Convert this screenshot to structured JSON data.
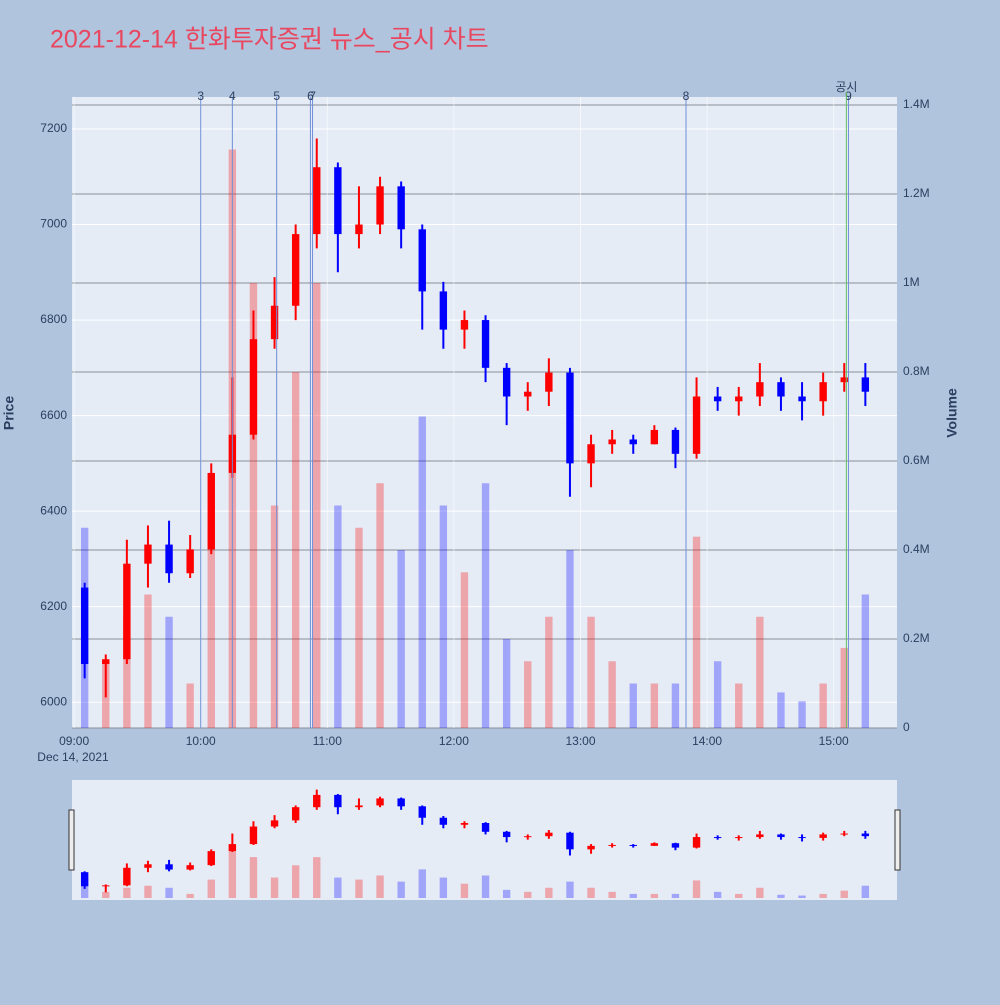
{
  "chart_data": {
    "type": "candlestick",
    "title": "2021-12-14 한화투자증권 뉴스_공시 차트",
    "y_label": "Price",
    "y2_label": "Volume",
    "x_sublabel": "Dec 14, 2021",
    "increasing_color": "#ff0000",
    "decreasing_color": "#0000ff",
    "x": [
      "09:00",
      "09:10",
      "09:20",
      "09:30",
      "09:40",
      "09:50",
      "10:00",
      "10:10",
      "10:20",
      "10:30",
      "10:40",
      "10:50",
      "11:00",
      "11:10",
      "11:20",
      "11:30",
      "11:40",
      "11:50",
      "12:00",
      "12:10",
      "12:20",
      "12:30",
      "12:40",
      "12:50",
      "13:00",
      "13:10",
      "13:20",
      "13:30",
      "13:40",
      "13:50",
      "14:00",
      "14:10",
      "14:20",
      "14:30",
      "14:40",
      "14:50",
      "15:00",
      "15:10"
    ],
    "open": [
      6240,
      6080,
      6090,
      6290,
      6330,
      6270,
      6320,
      6480,
      6560,
      6760,
      6830,
      6980,
      7120,
      6980,
      7000,
      7080,
      6990,
      6860,
      6780,
      6800,
      6700,
      6640,
      6650,
      6690,
      6500,
      6540,
      6550,
      6540,
      6570,
      6520,
      6640,
      6630,
      6640,
      6670,
      6640,
      6630,
      6670,
      6680
    ],
    "high": [
      6250,
      6100,
      6340,
      6370,
      6380,
      6350,
      6500,
      6680,
      6820,
      6890,
      7000,
      7180,
      7130,
      7080,
      7100,
      7090,
      7000,
      6880,
      6820,
      6810,
      6710,
      6670,
      6720,
      6700,
      6560,
      6570,
      6560,
      6580,
      6575,
      6680,
      6660,
      6660,
      6710,
      6680,
      6670,
      6690,
      6710,
      6710
    ],
    "low": [
      6050,
      6010,
      6080,
      6240,
      6250,
      6260,
      6310,
      6470,
      6550,
      6740,
      6800,
      6950,
      6900,
      6950,
      6980,
      6950,
      6780,
      6740,
      6740,
      6670,
      6580,
      6610,
      6620,
      6430,
      6450,
      6520,
      6520,
      6540,
      6490,
      6510,
      6610,
      6600,
      6620,
      6610,
      6590,
      6600,
      6650,
      6620
    ],
    "close": [
      6080,
      6090,
      6290,
      6330,
      6270,
      6320,
      6480,
      6560,
      6760,
      6830,
      6980,
      7120,
      6980,
      7000,
      7080,
      6990,
      6860,
      6780,
      6800,
      6700,
      6640,
      6650,
      6690,
      6500,
      6540,
      6550,
      6540,
      6570,
      6520,
      6640,
      6630,
      6640,
      6670,
      6640,
      6630,
      6670,
      6680,
      6650
    ],
    "volume": [
      450000,
      150000,
      250000,
      300000,
      250000,
      100000,
      450000,
      1300000,
      1000000,
      500000,
      800000,
      1000000,
      500000,
      450000,
      550000,
      400000,
      700000,
      500000,
      350000,
      550000,
      200000,
      150000,
      250000,
      400000,
      250000,
      150000,
      100000,
      100000,
      100000,
      430000,
      150000,
      100000,
      250000,
      80000,
      60000,
      100000,
      180000,
      300000
    ],
    "xlim": [
      "08:59",
      "15:30"
    ],
    "xticks": [
      "09:00",
      "10:00",
      "11:00",
      "12:00",
      "13:00",
      "14:00",
      "15:00"
    ],
    "ylim": [
      5946,
      7267
    ],
    "yticks": [
      6000,
      6200,
      6400,
      6600,
      6800,
      7000,
      7200
    ],
    "y2lim": [
      0,
      1418000
    ],
    "y2ticks": [
      0,
      {
        "value": 200000,
        "label": "0.2M"
      },
      {
        "value": 400000,
        "label": "0.4M"
      },
      {
        "value": 600000,
        "label": "0.6M"
      },
      {
        "value": 800000,
        "label": "0.8M"
      },
      {
        "value": 1000000,
        "label": "1M"
      },
      {
        "value": 1200000,
        "label": "1.2M"
      },
      {
        "value": 1400000,
        "label": "1.4M"
      }
    ],
    "news": [
      {
        "x": "10:00",
        "label": "3"
      },
      {
        "x": "10:15",
        "label": "4"
      },
      {
        "x": "10:36",
        "label": "5"
      },
      {
        "x": "10:52",
        "label": "6"
      },
      {
        "x": "10:53",
        "label": "7"
      },
      {
        "x": "13:50",
        "label": "8"
      },
      {
        "x": "15:07",
        "label": "9"
      }
    ],
    "disclosure": {
      "x": "15:06",
      "label": "공시"
    }
  }
}
